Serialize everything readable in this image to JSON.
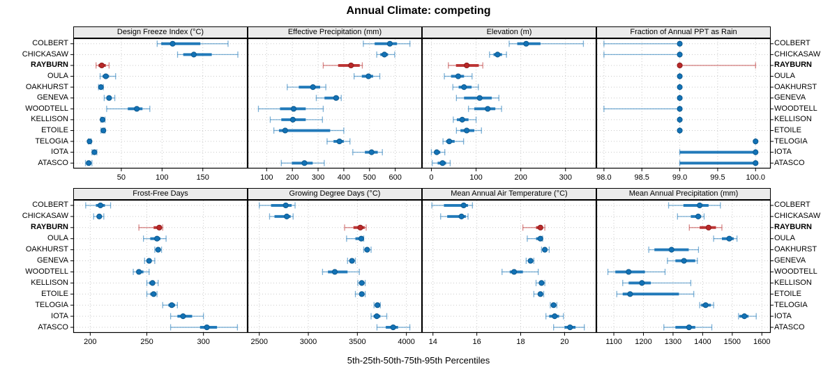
{
  "chart_data": {
    "type": "dotplot-percentiles",
    "title": "Annual Climate: competing",
    "caption": "5th-25th-50th-75th-95th Percentiles",
    "percentiles": [
      5,
      25,
      50,
      75,
      95
    ],
    "legend_position": "none",
    "grid": "dotted-both-axes",
    "sites": [
      "COLBERT",
      "CHICKASAW",
      "RAYBURN",
      "OULA",
      "OAKHURST",
      "GENEVA",
      "WOODTELL",
      "KELLISON",
      "ETOILE",
      "TELOGIA",
      "IOTA",
      "ATASCO"
    ],
    "highlight_site": "RAYBURN",
    "colors": {
      "series": "#1271B5",
      "series_edge": "#0d5a8f",
      "highlight": "#B92828",
      "highlight_edge": "#8f1d1d",
      "strip_bg": "#ebebeb",
      "grid": "#c8c8c8",
      "border": "#000000"
    },
    "panels": [
      {
        "title": "Design Freeze Index (°C)",
        "xlim": [
          -9,
          205
        ],
        "tick_values": [
          50,
          100,
          150
        ],
        "tick_labels": [
          "50",
          "100",
          "150"
        ],
        "values": [
          [
            94,
            99,
            113,
            147,
            181
          ],
          [
            119,
            126,
            139,
            161,
            193
          ],
          [
            19,
            22,
            26,
            31,
            35
          ],
          [
            24,
            27,
            31,
            35,
            43
          ],
          [
            22,
            23,
            25,
            26,
            28
          ],
          [
            29,
            32,
            35,
            38,
            42
          ],
          [
            32,
            58,
            69,
            76,
            85
          ],
          [
            25,
            26,
            27,
            28,
            30
          ],
          [
            25,
            27,
            28,
            29,
            30
          ],
          [
            9.5,
            10.5,
            11,
            12,
            13
          ],
          [
            14,
            16,
            17,
            19,
            20
          ],
          [
            6,
            8.5,
            10,
            12,
            14
          ]
        ]
      },
      {
        "title": "Effective Precipitation (mm)",
        "xlim": [
          26,
          704
        ],
        "tick_values": [
          100,
          200,
          300,
          400,
          500,
          600
        ],
        "tick_labels": [
          "100",
          "200",
          "300",
          "400",
          "500",
          "600"
        ],
        "values": [
          [
            476,
            520,
            579,
            607,
            657
          ],
          [
            528,
            542,
            558,
            572,
            598
          ],
          [
            320,
            378,
            428,
            462,
            472
          ],
          [
            440,
            470,
            496,
            514,
            540
          ],
          [
            180,
            225,
            280,
            308,
            330
          ],
          [
            293,
            325,
            370,
            381,
            390
          ],
          [
            68,
            152,
            205,
            252,
            320
          ],
          [
            114,
            157,
            202,
            252,
            317
          ],
          [
            128,
            148,
            172,
            347,
            400
          ],
          [
            335,
            360,
            383,
            400,
            424
          ],
          [
            435,
            482,
            508,
            532,
            550
          ],
          [
            157,
            198,
            247,
            279,
            324
          ]
        ]
      },
      {
        "title": "Elevation (m)",
        "xlim": [
          -21,
          369
        ],
        "tick_values": [
          0,
          100,
          200,
          300
        ],
        "tick_labels": [
          "0",
          "100",
          "200",
          "300"
        ],
        "values": [
          [
            174,
            192,
            212,
            244,
            340
          ],
          [
            130,
            139,
            148,
            158,
            168
          ],
          [
            38,
            55,
            79,
            106,
            115
          ],
          [
            29,
            44,
            60,
            73,
            91
          ],
          [
            48,
            61,
            73,
            90,
            105
          ],
          [
            56,
            73,
            108,
            135,
            151
          ],
          [
            83,
            96,
            126,
            143,
            157
          ],
          [
            49,
            57,
            69,
            83,
            100
          ],
          [
            56,
            65,
            79,
            96,
            112
          ],
          [
            26,
            33,
            40,
            52,
            72
          ],
          [
            0,
            6,
            12,
            20,
            30
          ],
          [
            2,
            14,
            25,
            33,
            42
          ]
        ]
      },
      {
        "title": "Fraction of Annual PPT as Rain",
        "xlim": [
          97.9,
          100.2
        ],
        "tick_values": [
          98.0,
          98.5,
          99.0,
          99.5,
          100.0
        ],
        "tick_labels": [
          "98.0",
          "98.5",
          "99.0",
          "99.5",
          "100.0"
        ],
        "values": [
          [
            98,
            99,
            99,
            99,
            99
          ],
          [
            98,
            99,
            99,
            99,
            99
          ],
          [
            99,
            99,
            99,
            99,
            100
          ],
          [
            99,
            99,
            99,
            99,
            99
          ],
          [
            99,
            99,
            99,
            99,
            99
          ],
          [
            99,
            99,
            99,
            99,
            99
          ],
          [
            98,
            99,
            99,
            99,
            99
          ],
          [
            99,
            99,
            99,
            99,
            99
          ],
          [
            99,
            99,
            99,
            99,
            99
          ],
          [
            100,
            100,
            100,
            100,
            100
          ],
          [
            99,
            99,
            100,
            100,
            100
          ],
          [
            99,
            99,
            100,
            100,
            100
          ]
        ]
      },
      {
        "title": "Frost-Free Days",
        "xlim": [
          185,
          339
        ],
        "tick_values": [
          200,
          250,
          300
        ],
        "tick_labels": [
          "200",
          "250",
          "300"
        ],
        "values": [
          [
            196,
            205,
            209,
            213,
            218
          ],
          [
            203,
            206,
            208,
            210,
            212
          ],
          [
            243,
            256,
            261,
            262,
            264
          ],
          [
            247,
            253,
            259,
            262,
            267
          ],
          [
            257,
            259,
            260,
            261,
            263
          ],
          [
            248,
            250,
            252,
            254,
            257
          ],
          [
            238,
            241,
            243,
            247,
            252
          ],
          [
            250,
            252,
            255,
            257,
            260
          ],
          [
            250,
            253,
            256,
            257,
            259
          ],
          [
            264,
            269,
            272,
            275,
            277
          ],
          [
            271,
            277,
            282,
            290,
            300
          ],
          [
            271,
            297,
            303,
            312,
            330
          ]
        ]
      },
      {
        "title": "Growing Degree Days (°C)",
        "xlim": [
          2381,
          4159
        ],
        "tick_values": [
          2500,
          3000,
          3500,
          4000
        ],
        "tick_labels": [
          "2500",
          "3000",
          "3500",
          "4000"
        ],
        "values": [
          [
            2500,
            2620,
            2770,
            2830,
            2865
          ],
          [
            2605,
            2655,
            2780,
            2820,
            2845
          ],
          [
            3370,
            3460,
            3530,
            3575,
            3590
          ],
          [
            3390,
            3480,
            3540,
            3555,
            3565
          ],
          [
            3565,
            3585,
            3600,
            3620,
            3640
          ],
          [
            3400,
            3425,
            3445,
            3460,
            3480
          ],
          [
            3145,
            3200,
            3270,
            3400,
            3520
          ],
          [
            3505,
            3525,
            3545,
            3560,
            3580
          ],
          [
            3480,
            3520,
            3545,
            3560,
            3580
          ],
          [
            3670,
            3690,
            3705,
            3720,
            3735
          ],
          [
            3640,
            3665,
            3698,
            3735,
            3800
          ],
          [
            3700,
            3790,
            3865,
            3915,
            4035
          ]
        ]
      },
      {
        "title": "Mean Annual Air Temperature (°C)",
        "xlim": [
          13.5,
          21.45
        ],
        "tick_values": [
          14,
          16,
          18,
          20
        ],
        "tick_labels": [
          "14",
          "16",
          "18",
          "20"
        ],
        "values": [
          [
            13.95,
            14.5,
            15.4,
            15.6,
            15.8
          ],
          [
            14.35,
            14.65,
            15.3,
            15.5,
            15.6
          ],
          [
            18.1,
            18.7,
            18.9,
            19.0,
            19.1
          ],
          [
            18.3,
            18.7,
            18.9,
            18.95,
            19.0
          ],
          [
            18.95,
            19.0,
            19.1,
            19.2,
            19.3
          ],
          [
            18.25,
            18.35,
            18.45,
            18.55,
            18.6
          ],
          [
            17.15,
            17.5,
            17.7,
            18.1,
            18.8
          ],
          [
            18.7,
            18.85,
            18.95,
            19.0,
            19.1
          ],
          [
            18.6,
            18.8,
            18.9,
            19.0,
            19.05
          ],
          [
            19.35,
            19.45,
            19.5,
            19.6,
            19.65
          ],
          [
            19.15,
            19.3,
            19.55,
            19.75,
            19.95
          ],
          [
            19.5,
            20.0,
            20.25,
            20.5,
            20.9
          ]
        ]
      },
      {
        "title": "Mean Annual Precipitation (mm)",
        "xlim": [
          1041,
          1630
        ],
        "tick_values": [
          1100,
          1200,
          1300,
          1400,
          1500,
          1600
        ],
        "tick_labels": [
          "1100",
          "1200",
          "1300",
          "1400",
          "1500",
          "1600"
        ],
        "values": [
          [
            1285,
            1335,
            1390,
            1420,
            1460
          ],
          [
            1315,
            1360,
            1385,
            1395,
            1405
          ],
          [
            1355,
            1390,
            1420,
            1445,
            1465
          ],
          [
            1437,
            1465,
            1490,
            1505,
            1516
          ],
          [
            1218,
            1237,
            1295,
            1353,
            1386
          ],
          [
            1281,
            1308,
            1337,
            1375,
            1382
          ],
          [
            1080,
            1105,
            1150,
            1205,
            1273
          ],
          [
            1130,
            1150,
            1195,
            1225,
            1360
          ],
          [
            1110,
            1130,
            1155,
            1320,
            1370
          ],
          [
            1390,
            1395,
            1410,
            1428,
            1437
          ],
          [
            1521,
            1524,
            1541,
            1555,
            1581
          ],
          [
            1269,
            1308,
            1354,
            1375,
            1431
          ]
        ]
      }
    ]
  }
}
